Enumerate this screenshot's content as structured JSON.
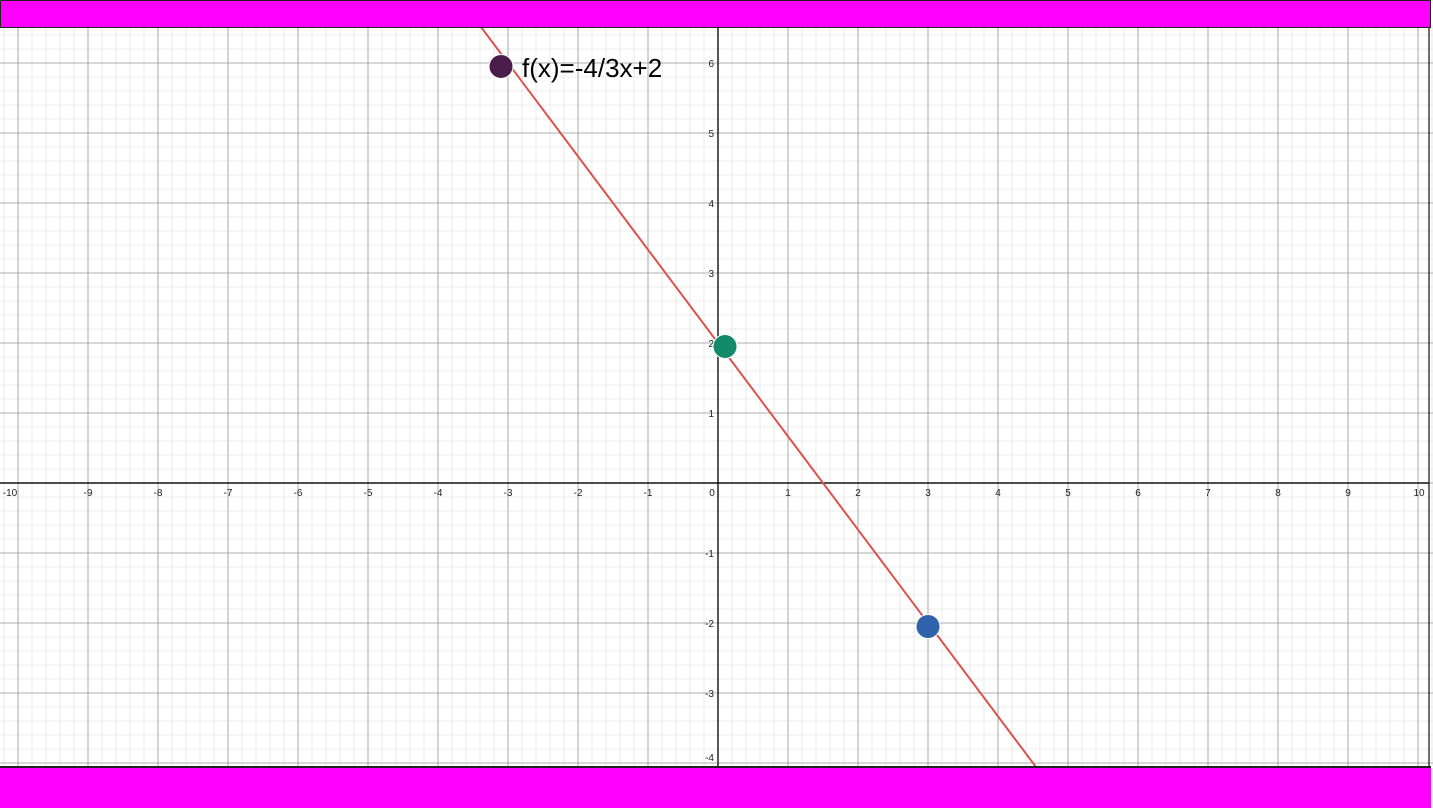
{
  "chart_data": {
    "type": "line",
    "title": "",
    "xlabel": "",
    "ylabel": "",
    "xlim": [
      -10,
      10
    ],
    "ylim": [
      -4,
      6
    ],
    "x_ticks": [
      -10,
      -9,
      -8,
      -7,
      -6,
      -5,
      -4,
      -3,
      -2,
      -1,
      0,
      1,
      2,
      3,
      4,
      5,
      6,
      7,
      8,
      9,
      10
    ],
    "y_ticks": [
      -4,
      -3,
      -2,
      -1,
      1,
      2,
      3,
      4,
      5,
      6
    ],
    "grid": true,
    "function_label": "f(x)=-4/3x+2",
    "line": {
      "slope": -1.3333,
      "intercept": 2,
      "color": "#d9534f"
    },
    "points": [
      {
        "x": -3.1,
        "y": 5.95,
        "color": "#4b1d4b"
      },
      {
        "x": 0.1,
        "y": 1.95,
        "color": "#138a6a"
      },
      {
        "x": 3,
        "y": -2.05,
        "color": "#2f64ad"
      }
    ]
  },
  "colors": {
    "band": "#ff00ff",
    "axis": "#111111",
    "minor_grid": "#dcdcdc",
    "major_grid": "#9a9a9a"
  }
}
